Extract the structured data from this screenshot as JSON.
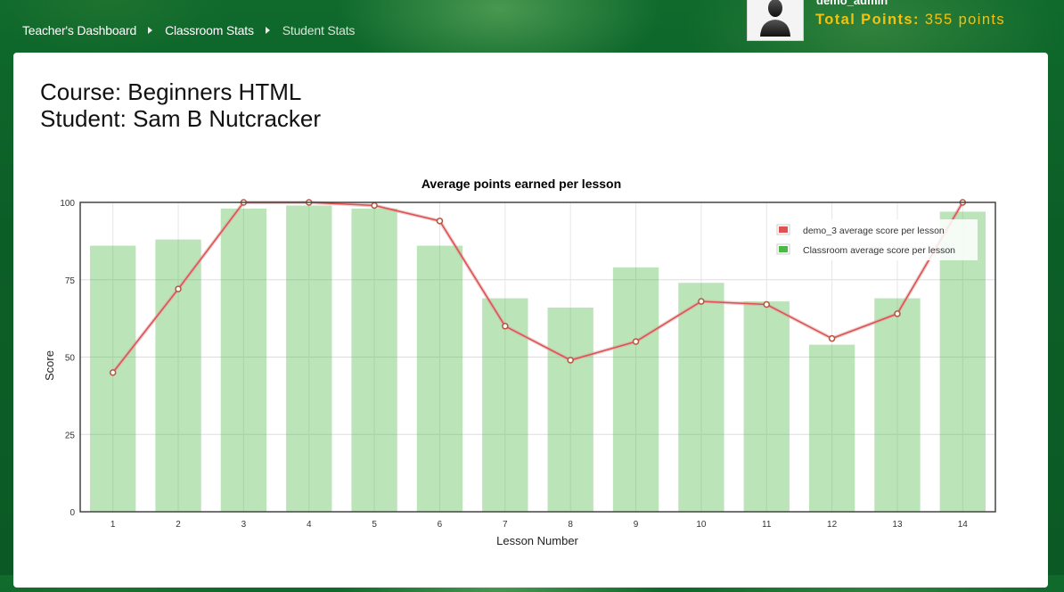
{
  "breadcrumb": [
    {
      "label": "Teacher's Dashboard"
    },
    {
      "label": "Classroom Stats"
    },
    {
      "label": "Student Stats"
    }
  ],
  "user": {
    "name": "demo_admin",
    "points_label": "Total Points:",
    "points_value": "355 points",
    "avatar_icon": "user-silhouette-icon"
  },
  "course": {
    "course_line": "Course: Beginners HTML",
    "student_line": "Student: Sam B Nutcracker"
  },
  "chart_data": {
    "type": "bar",
    "title": "Average points earned per lesson",
    "xlabel": "Lesson Number",
    "ylabel": "Score",
    "ylim": [
      0,
      100
    ],
    "yticks": [
      0,
      25,
      50,
      75,
      100
    ],
    "grid": true,
    "legend_position": "top-right",
    "categories": [
      "1",
      "2",
      "3",
      "4",
      "5",
      "6",
      "7",
      "8",
      "9",
      "10",
      "11",
      "12",
      "13",
      "14"
    ],
    "series": [
      {
        "name": "demo_3 average score per lesson",
        "kind": "line",
        "color": "#e05252",
        "values": [
          45,
          72,
          100,
          100,
          99,
          94,
          60,
          49,
          55,
          68,
          67,
          56,
          64,
          100
        ]
      },
      {
        "name": "Classroom average score per lesson",
        "kind": "bar",
        "color": "#4cb848",
        "values": [
          86,
          88,
          98,
          99,
          98,
          86,
          69,
          66,
          79,
          74,
          68,
          54,
          69,
          97
        ]
      }
    ]
  }
}
